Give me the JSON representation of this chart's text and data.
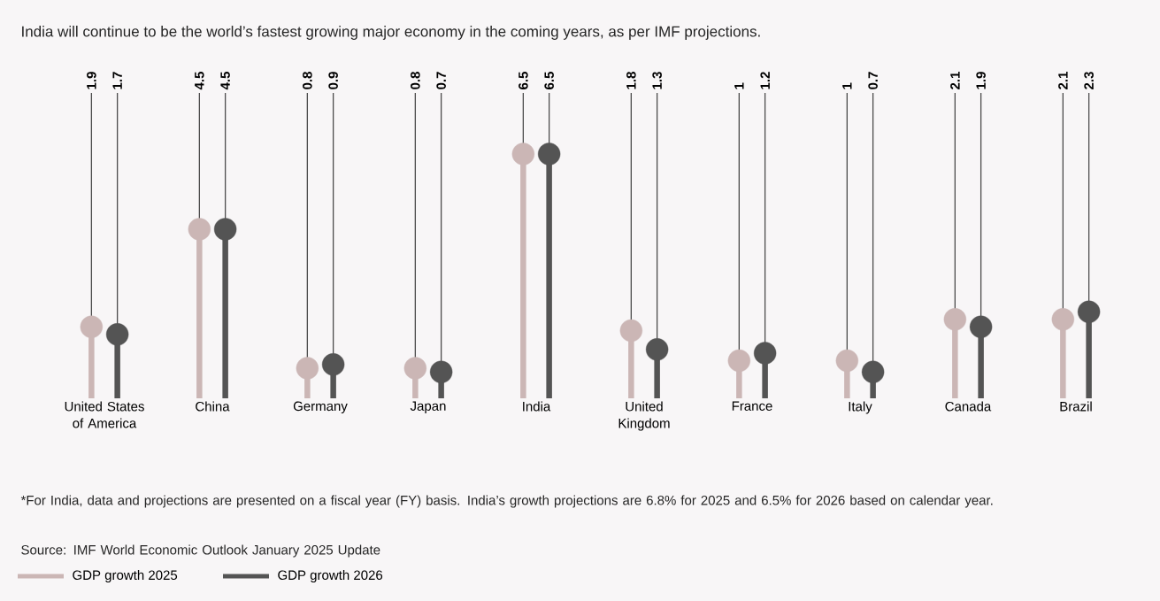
{
  "chart_data": {
    "type": "lollipop",
    "title": "India will continue to be the world’s fastest growing major economy in the coming years, as per IMF projections.",
    "categories": [
      "United States of America",
      "China",
      "Germany",
      "Japan",
      "India",
      "United Kingdom",
      "France",
      "Italy",
      "Canada",
      "Brazil"
    ],
    "series": [
      {
        "name": "GDP growth 2025",
        "color": "#cbb6b5",
        "values": [
          1.9,
          4.5,
          0.8,
          0.8,
          6.5,
          1.8,
          1,
          1,
          2.1,
          2.1
        ],
        "value_labels": [
          "1.9",
          "4.5",
          "0.8",
          "0.8",
          "6.5",
          "1.8",
          "1",
          "1",
          "2.1",
          "2.1"
        ]
      },
      {
        "name": "GDP growth 2026",
        "color": "#545454",
        "values": [
          1.7,
          4.5,
          0.9,
          0.7,
          6.5,
          1.3,
          1.2,
          0.7,
          1.9,
          2.3
        ],
        "value_labels": [
          "1.7",
          "4.5",
          "0.9",
          "0.7",
          "6.5",
          "1.3",
          "1.2",
          "0.7",
          "1.9",
          "2.3"
        ]
      }
    ],
    "marker": "circle",
    "legend": "bottom",
    "annotations": [
      "*For India, data and projections are presented on a fiscal year (FY) basis. India’s growth projections are 6.8% for 2025 and 6.5% for 2026 based on calendar year.",
      "Source: IMF World Economic Outlook January 2025 Update"
    ]
  }
}
